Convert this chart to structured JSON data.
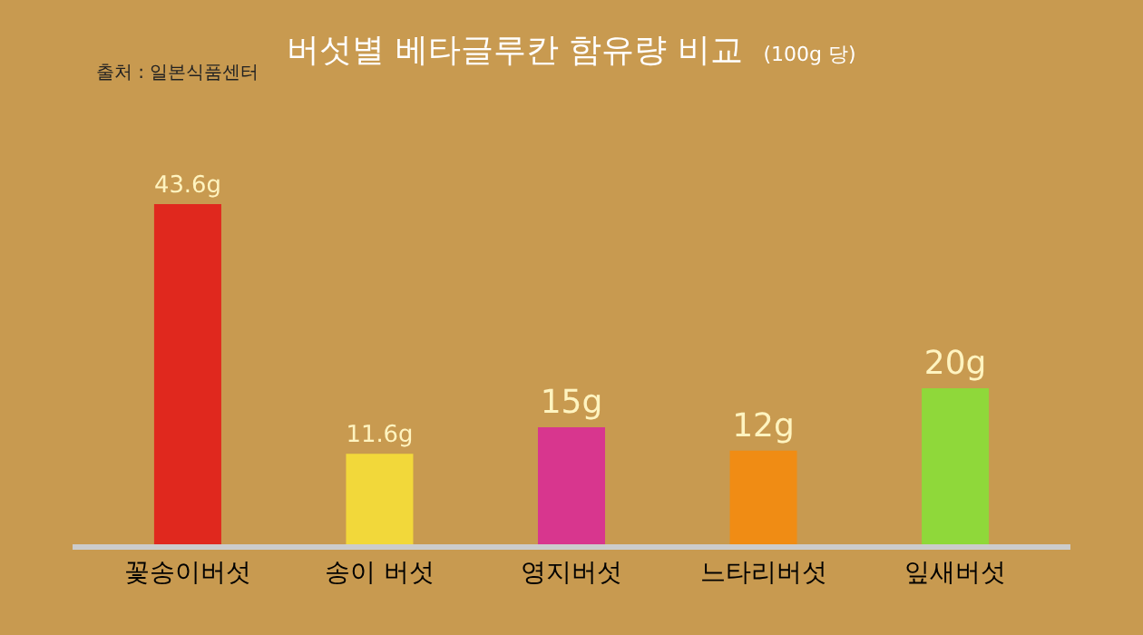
{
  "chart_data": {
    "type": "bar",
    "title": "버섯별 베타글루칸 함유량 비교",
    "subtitle": "(100g 당)",
    "annotations": [
      "출처 : 일본식품센터"
    ],
    "categories": [
      "꽃송이버섯",
      "송이 버섯",
      "영지버섯",
      "느타리버섯",
      "잎새버섯"
    ],
    "values": [
      43.6,
      11.6,
      15,
      12,
      20
    ],
    "colors": [
      "#e0281e",
      "#f2d83a",
      "#d8368e",
      "#f08c14",
      "#8fd83a"
    ],
    "value_labels": [
      "43.6g",
      "11.6g",
      "15g",
      "12g",
      "20g"
    ]
  }
}
